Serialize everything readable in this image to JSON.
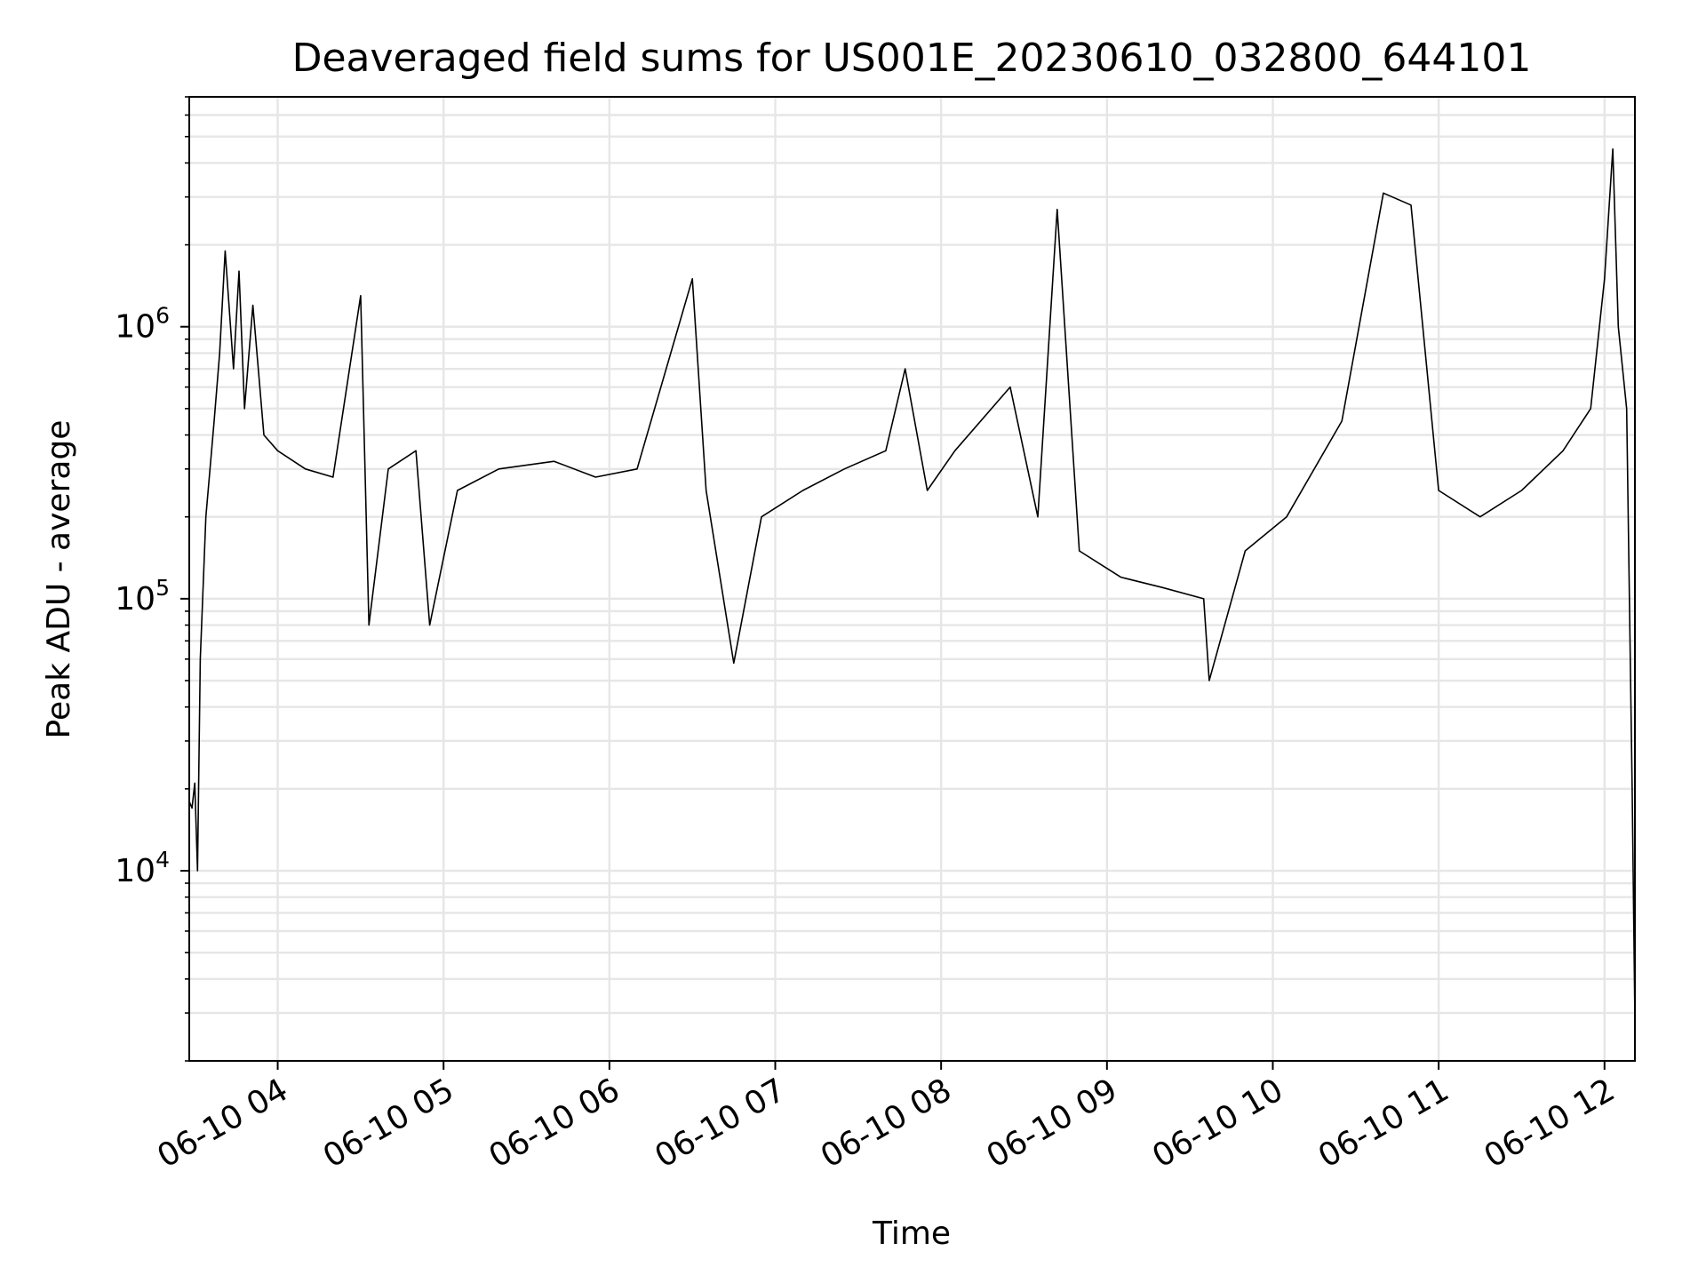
{
  "chart_data": {
    "type": "line",
    "title": "Deaveraged field sums for US001E_20230610_032800_644101",
    "xlabel": "Time",
    "ylabel": "Peak ADU - average",
    "x_start": "06-10 03:28",
    "x_end": "06-10 12:11",
    "xlim": [
      "06-10 03:28",
      "06-10 12:11"
    ],
    "ylim": [
      2000,
      7000000
    ],
    "yscale": "log",
    "grid": "on",
    "x_ticks": [
      "06-10 04",
      "06-10 05",
      "06-10 06",
      "06-10 07",
      "06-10 08",
      "06-10 09",
      "06-10 10",
      "06-10 11",
      "06-10 12"
    ],
    "y_ticks": [
      {
        "value": 10000,
        "base": "10",
        "exp": "4"
      },
      {
        "value": 100000,
        "base": "10",
        "exp": "5"
      },
      {
        "value": 1000000,
        "base": "10",
        "exp": "6"
      }
    ],
    "series": [
      {
        "color": "#000000",
        "points": [
          [
            "06-10 03:28",
            18000
          ],
          [
            "06-10 03:29",
            17000
          ],
          [
            "06-10 03:30",
            21000
          ],
          [
            "06-10 03:31",
            10000
          ],
          [
            "06-10 03:32",
            60000
          ],
          [
            "06-10 03:34",
            200000
          ],
          [
            "06-10 03:37",
            450000
          ],
          [
            "06-10 03:39",
            800000
          ],
          [
            "06-10 03:41",
            1900000
          ],
          [
            "06-10 03:44",
            700000
          ],
          [
            "06-10 03:46",
            1600000
          ],
          [
            "06-10 03:48",
            500000
          ],
          [
            "06-10 03:51",
            1200000
          ],
          [
            "06-10 03:55",
            400000
          ],
          [
            "06-10 04:00",
            350000
          ],
          [
            "06-10 04:10",
            300000
          ],
          [
            "06-10 04:20",
            280000
          ],
          [
            "06-10 04:30",
            1300000
          ],
          [
            "06-10 04:33",
            80000
          ],
          [
            "06-10 04:40",
            300000
          ],
          [
            "06-10 04:50",
            350000
          ],
          [
            "06-10 04:55",
            80000
          ],
          [
            "06-10 05:05",
            250000
          ],
          [
            "06-10 05:20",
            300000
          ],
          [
            "06-10 05:40",
            320000
          ],
          [
            "06-10 05:55",
            280000
          ],
          [
            "06-10 06:10",
            300000
          ],
          [
            "06-10 06:30",
            1500000
          ],
          [
            "06-10 06:35",
            250000
          ],
          [
            "06-10 06:45",
            58000
          ],
          [
            "06-10 06:55",
            200000
          ],
          [
            "06-10 07:10",
            250000
          ],
          [
            "06-10 07:25",
            300000
          ],
          [
            "06-10 07:40",
            350000
          ],
          [
            "06-10 07:47",
            700000
          ],
          [
            "06-10 07:55",
            250000
          ],
          [
            "06-10 08:05",
            350000
          ],
          [
            "06-10 08:25",
            600000
          ],
          [
            "06-10 08:35",
            200000
          ],
          [
            "06-10 08:42",
            2700000
          ],
          [
            "06-10 08:50",
            150000
          ],
          [
            "06-10 09:05",
            120000
          ],
          [
            "06-10 09:20",
            110000
          ],
          [
            "06-10 09:35",
            100000
          ],
          [
            "06-10 09:37",
            50000
          ],
          [
            "06-10 09:50",
            150000
          ],
          [
            "06-10 10:05",
            200000
          ],
          [
            "06-10 10:25",
            450000
          ],
          [
            "06-10 10:40",
            3100000
          ],
          [
            "06-10 10:50",
            2800000
          ],
          [
            "06-10 11:00",
            250000
          ],
          [
            "06-10 11:15",
            200000
          ],
          [
            "06-10 11:30",
            250000
          ],
          [
            "06-10 11:45",
            350000
          ],
          [
            "06-10 11:55",
            500000
          ],
          [
            "06-10 12:00",
            1500000
          ],
          [
            "06-10 12:03",
            4500000
          ],
          [
            "06-10 12:05",
            1000000
          ],
          [
            "06-10 12:08",
            500000
          ],
          [
            "06-10 12:10",
            20000
          ],
          [
            "06-10 12:11",
            2800
          ]
        ]
      }
    ]
  }
}
